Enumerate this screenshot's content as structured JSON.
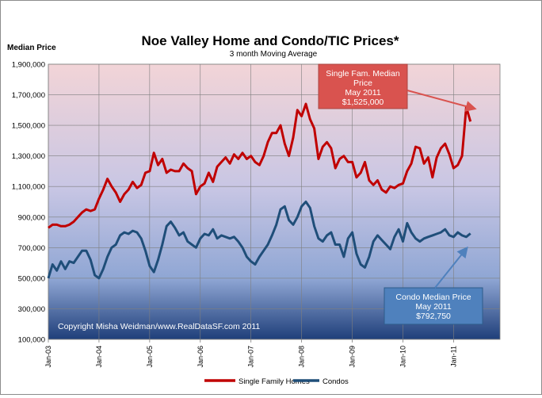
{
  "chart_data": {
    "type": "line",
    "title": "Noe Valley Home and Condo/TIC Prices*",
    "subtitle": "3 month Moving Average",
    "ylabel": "Median Price",
    "xlabel": "",
    "ylim": [
      100000,
      1900000
    ],
    "yticks": [
      100000,
      300000,
      500000,
      700000,
      900000,
      1100000,
      1300000,
      1500000,
      1700000,
      1900000
    ],
    "ytick_labels": [
      "100,000",
      "300,000",
      "500,000",
      "700,000",
      "900,000",
      "1,100,000",
      "1,300,000",
      "1,500,000",
      "1,700,000",
      "1,900,000"
    ],
    "xlim": [
      "2003-01",
      "2011-12"
    ],
    "xticks": [
      "2003-01",
      "2004-01",
      "2005-01",
      "2006-01",
      "2007-01",
      "2008-01",
      "2009-01",
      "2010-01",
      "2011-01"
    ],
    "xtick_labels": [
      "Jan-03",
      "Jan-04",
      "Jan-05",
      "Jan-06",
      "Jan-07",
      "Jan-08",
      "Jan-09",
      "Jan-10",
      "Jan-11"
    ],
    "grid": true,
    "legend_position": "bottom",
    "colors": {
      "single_family": "#c00000",
      "condos": "#1f4e79",
      "callout_red": "#d9534f",
      "callout_blue": "#4f81bd"
    },
    "series": [
      {
        "name": "Single Family Homes",
        "x": [
          "2003-01",
          "2003-02",
          "2003-03",
          "2003-04",
          "2003-05",
          "2003-06",
          "2003-07",
          "2003-08",
          "2003-09",
          "2003-10",
          "2003-11",
          "2003-12",
          "2004-01",
          "2004-02",
          "2004-03",
          "2004-04",
          "2004-05",
          "2004-06",
          "2004-07",
          "2004-08",
          "2004-09",
          "2004-10",
          "2004-11",
          "2004-12",
          "2005-01",
          "2005-02",
          "2005-03",
          "2005-04",
          "2005-05",
          "2005-06",
          "2005-07",
          "2005-08",
          "2005-09",
          "2005-10",
          "2005-11",
          "2005-12",
          "2006-01",
          "2006-02",
          "2006-03",
          "2006-04",
          "2006-05",
          "2006-06",
          "2006-07",
          "2006-08",
          "2006-09",
          "2006-10",
          "2006-11",
          "2006-12",
          "2007-01",
          "2007-02",
          "2007-03",
          "2007-04",
          "2007-05",
          "2007-06",
          "2007-07",
          "2007-08",
          "2007-09",
          "2007-10",
          "2007-11",
          "2007-12",
          "2008-01",
          "2008-02",
          "2008-03",
          "2008-04",
          "2008-05",
          "2008-06",
          "2008-07",
          "2008-08",
          "2008-09",
          "2008-10",
          "2008-11",
          "2008-12",
          "2009-01",
          "2009-02",
          "2009-03",
          "2009-04",
          "2009-05",
          "2009-06",
          "2009-07",
          "2009-08",
          "2009-09",
          "2009-10",
          "2009-11",
          "2009-12",
          "2010-01",
          "2010-02",
          "2010-03",
          "2010-04",
          "2010-05",
          "2010-06",
          "2010-07",
          "2010-08",
          "2010-09",
          "2010-10",
          "2010-11",
          "2010-12",
          "2011-01",
          "2011-02",
          "2011-03",
          "2011-04",
          "2011-05"
        ],
        "values": [
          830000,
          850000,
          850000,
          840000,
          840000,
          850000,
          870000,
          900000,
          930000,
          950000,
          940000,
          950000,
          1020000,
          1080000,
          1150000,
          1100000,
          1060000,
          1000000,
          1050000,
          1080000,
          1130000,
          1090000,
          1110000,
          1190000,
          1200000,
          1320000,
          1240000,
          1280000,
          1190000,
          1210000,
          1200000,
          1200000,
          1250000,
          1220000,
          1200000,
          1050000,
          1100000,
          1120000,
          1190000,
          1130000,
          1230000,
          1260000,
          1290000,
          1250000,
          1310000,
          1280000,
          1320000,
          1280000,
          1300000,
          1260000,
          1240000,
          1300000,
          1390000,
          1450000,
          1450000,
          1500000,
          1380000,
          1300000,
          1420000,
          1600000,
          1560000,
          1640000,
          1540000,
          1480000,
          1280000,
          1360000,
          1390000,
          1350000,
          1220000,
          1280000,
          1300000,
          1260000,
          1260000,
          1160000,
          1190000,
          1260000,
          1140000,
          1110000,
          1140000,
          1080000,
          1060000,
          1100000,
          1090000,
          1110000,
          1120000,
          1200000,
          1250000,
          1360000,
          1350000,
          1250000,
          1290000,
          1160000,
          1290000,
          1350000,
          1380000,
          1310000,
          1220000,
          1240000,
          1300000,
          1620000,
          1525000
        ]
      },
      {
        "name": "Condos",
        "x": [
          "2003-01",
          "2003-02",
          "2003-03",
          "2003-04",
          "2003-05",
          "2003-06",
          "2003-07",
          "2003-08",
          "2003-09",
          "2003-10",
          "2003-11",
          "2003-12",
          "2004-01",
          "2004-02",
          "2004-03",
          "2004-04",
          "2004-05",
          "2004-06",
          "2004-07",
          "2004-08",
          "2004-09",
          "2004-10",
          "2004-11",
          "2004-12",
          "2005-01",
          "2005-02",
          "2005-03",
          "2005-04",
          "2005-05",
          "2005-06",
          "2005-07",
          "2005-08",
          "2005-09",
          "2005-10",
          "2005-11",
          "2005-12",
          "2006-01",
          "2006-02",
          "2006-03",
          "2006-04",
          "2006-05",
          "2006-06",
          "2006-07",
          "2006-08",
          "2006-09",
          "2006-10",
          "2006-11",
          "2006-12",
          "2007-01",
          "2007-02",
          "2007-03",
          "2007-04",
          "2007-05",
          "2007-06",
          "2007-07",
          "2007-08",
          "2007-09",
          "2007-10",
          "2007-11",
          "2007-12",
          "2008-01",
          "2008-02",
          "2008-03",
          "2008-04",
          "2008-05",
          "2008-06",
          "2008-07",
          "2008-08",
          "2008-09",
          "2008-10",
          "2008-11",
          "2008-12",
          "2009-01",
          "2009-02",
          "2009-03",
          "2009-04",
          "2009-05",
          "2009-06",
          "2009-07",
          "2009-08",
          "2009-09",
          "2009-10",
          "2009-11",
          "2009-12",
          "2010-01",
          "2010-02",
          "2010-03",
          "2010-04",
          "2010-05",
          "2010-06",
          "2010-07",
          "2010-08",
          "2010-09",
          "2010-10",
          "2010-11",
          "2010-12",
          "2011-01",
          "2011-02",
          "2011-03",
          "2011-04",
          "2011-05"
        ],
        "values": [
          500000,
          590000,
          550000,
          610000,
          560000,
          610000,
          600000,
          640000,
          680000,
          680000,
          620000,
          520000,
          500000,
          560000,
          640000,
          700000,
          720000,
          780000,
          800000,
          790000,
          810000,
          800000,
          760000,
          680000,
          580000,
          540000,
          620000,
          720000,
          840000,
          870000,
          830000,
          780000,
          800000,
          740000,
          720000,
          700000,
          760000,
          790000,
          780000,
          820000,
          760000,
          780000,
          770000,
          760000,
          770000,
          740000,
          700000,
          640000,
          610000,
          590000,
          640000,
          680000,
          720000,
          780000,
          850000,
          950000,
          970000,
          880000,
          850000,
          900000,
          970000,
          1000000,
          960000,
          840000,
          760000,
          740000,
          780000,
          800000,
          720000,
          720000,
          640000,
          760000,
          800000,
          660000,
          590000,
          570000,
          640000,
          740000,
          780000,
          750000,
          720000,
          690000,
          770000,
          820000,
          740000,
          860000,
          800000,
          760000,
          740000,
          760000,
          770000,
          780000,
          790000,
          800000,
          820000,
          780000,
          770000,
          800000,
          780000,
          770000,
          792750
        ]
      }
    ],
    "annotations": {
      "copyright": "Copyright Misha Weidman/www.RealDataSF.com 2011",
      "sf_callout": [
        "Single Fam. Median",
        "Price",
        "May 2011",
        "$1,525,000"
      ],
      "condo_callout": [
        "Condo Median Price",
        "May 2011",
        "$792,750"
      ]
    }
  }
}
